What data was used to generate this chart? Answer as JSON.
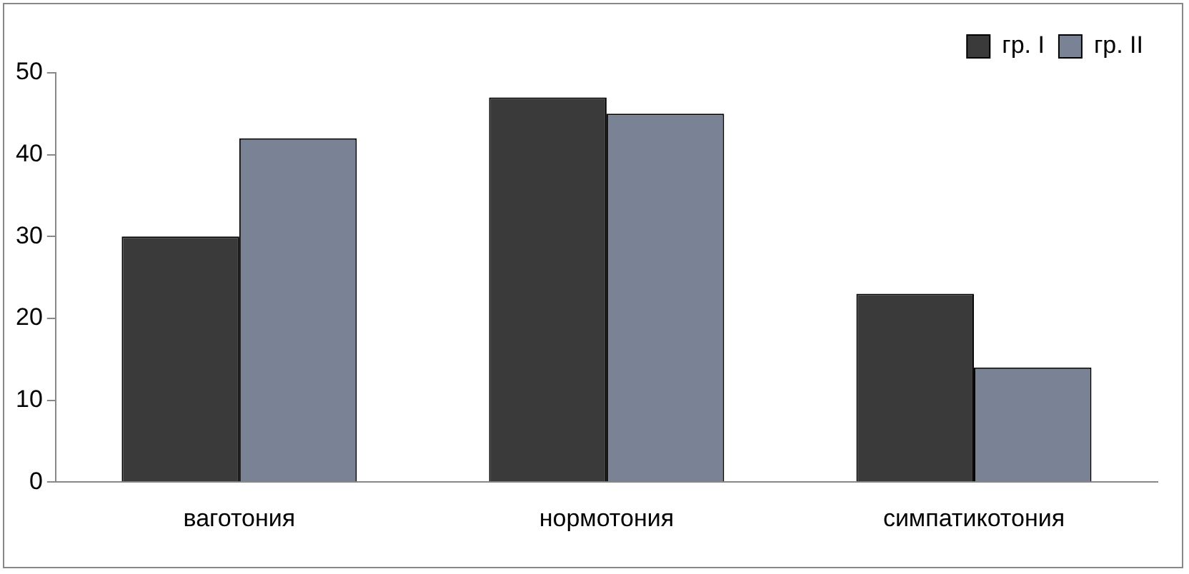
{
  "chart_data": {
    "type": "bar",
    "categories": [
      "ваготония",
      "нормотония",
      "симпатикотония"
    ],
    "series": [
      {
        "name": "гр. I",
        "color": "#3a3a3a",
        "values": [
          30,
          47,
          23
        ]
      },
      {
        "name": "гр. II",
        "color": "#7a8296",
        "values": [
          42,
          45,
          14
        ]
      }
    ],
    "ylim": [
      0,
      50
    ],
    "yticks": [
      0,
      10,
      20,
      30,
      40,
      50
    ],
    "grid": false,
    "legend": "top right"
  }
}
